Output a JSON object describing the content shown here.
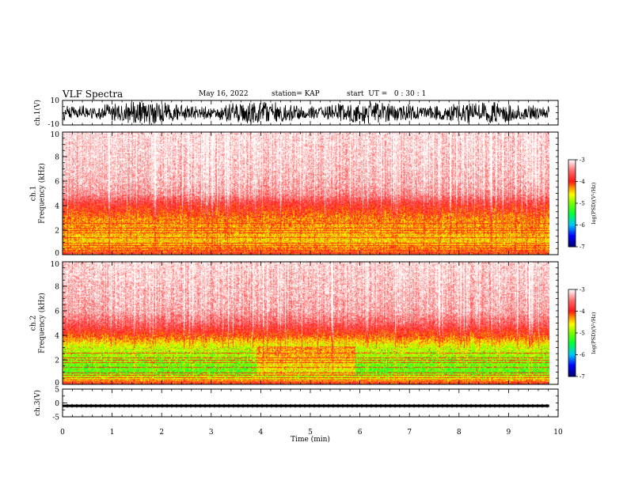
{
  "header": {
    "title": "VLF Spectra",
    "date": "May 16, 2022",
    "station": "station= KAP",
    "start_ut": "start  UT =   0 : 30 : 1"
  },
  "chart_data": [
    {
      "type": "line",
      "panel": "ch1-waveform",
      "ylabel": "ch.1(V)",
      "ylim": [
        -10,
        10
      ],
      "yticks": [
        "10",
        "-10"
      ],
      "xlim": [
        0,
        10
      ],
      "data_end_min": 9.82,
      "trace": "dense noise between about -8 and +8 V"
    },
    {
      "type": "heatmap",
      "panel": "ch1-spectrogram",
      "ylabel": "ch.1\nFrequency  (kHz)",
      "yticks": [
        "0",
        "2",
        "4",
        "6",
        "8",
        "10"
      ],
      "ylim": [
        0,
        10
      ],
      "xlim": [
        0,
        10
      ],
      "data_end_min": 9.82,
      "profile_kHz_logPSD": [
        [
          0,
          -4.1
        ],
        [
          1,
          -4.5
        ],
        [
          2,
          -4.4
        ],
        [
          3,
          -4.25
        ],
        [
          4,
          -3.9
        ],
        [
          5,
          -3.4
        ],
        [
          6,
          -3.25
        ],
        [
          8,
          -3.15
        ],
        [
          10,
          -3.1
        ]
      ]
    },
    {
      "type": "heatmap",
      "panel": "ch2-spectrogram",
      "ylabel": "ch.2\nFrequency  (kHz)",
      "yticks": [
        "0",
        "2",
        "4",
        "6",
        "8",
        "10"
      ],
      "ylim": [
        0,
        10
      ],
      "xlim": [
        0,
        10
      ],
      "data_end_min": 9.82,
      "profile_kHz_logPSD": [
        [
          0,
          -4.1
        ],
        [
          1,
          -5.2
        ],
        [
          2,
          -5.0
        ],
        [
          3,
          -4.8
        ],
        [
          4,
          -4.1
        ],
        [
          5,
          -3.6
        ],
        [
          6,
          -3.3
        ],
        [
          8,
          -3.2
        ],
        [
          10,
          -3.1
        ]
      ]
    },
    {
      "type": "line",
      "panel": "ch3-waveform",
      "ylabel": "ch.3(V)",
      "ylim": [
        -5,
        5
      ],
      "yticks": [
        "5",
        "0",
        "-5"
      ],
      "xlim": [
        0,
        10
      ],
      "data_end_min": 9.82,
      "trace": "thick band near -1 V"
    }
  ],
  "xaxis": {
    "label": "Time  (min)",
    "ticks": [
      "0",
      "1",
      "2",
      "3",
      "4",
      "5",
      "6",
      "7",
      "8",
      "9",
      "10"
    ]
  },
  "colorbar": {
    "label": "log(PSD)(V²/Hz)",
    "range": [
      -7,
      -3
    ],
    "ticks": [
      "-3",
      "-4",
      "-5",
      "-6",
      "-7"
    ],
    "colors": [
      "#000080",
      "#0000ff",
      "#00c8ff",
      "#00ff00",
      "#c8ff00",
      "#ffff00",
      "#ff8000",
      "#ff0000",
      "#ff8080",
      "#ffffff"
    ]
  }
}
